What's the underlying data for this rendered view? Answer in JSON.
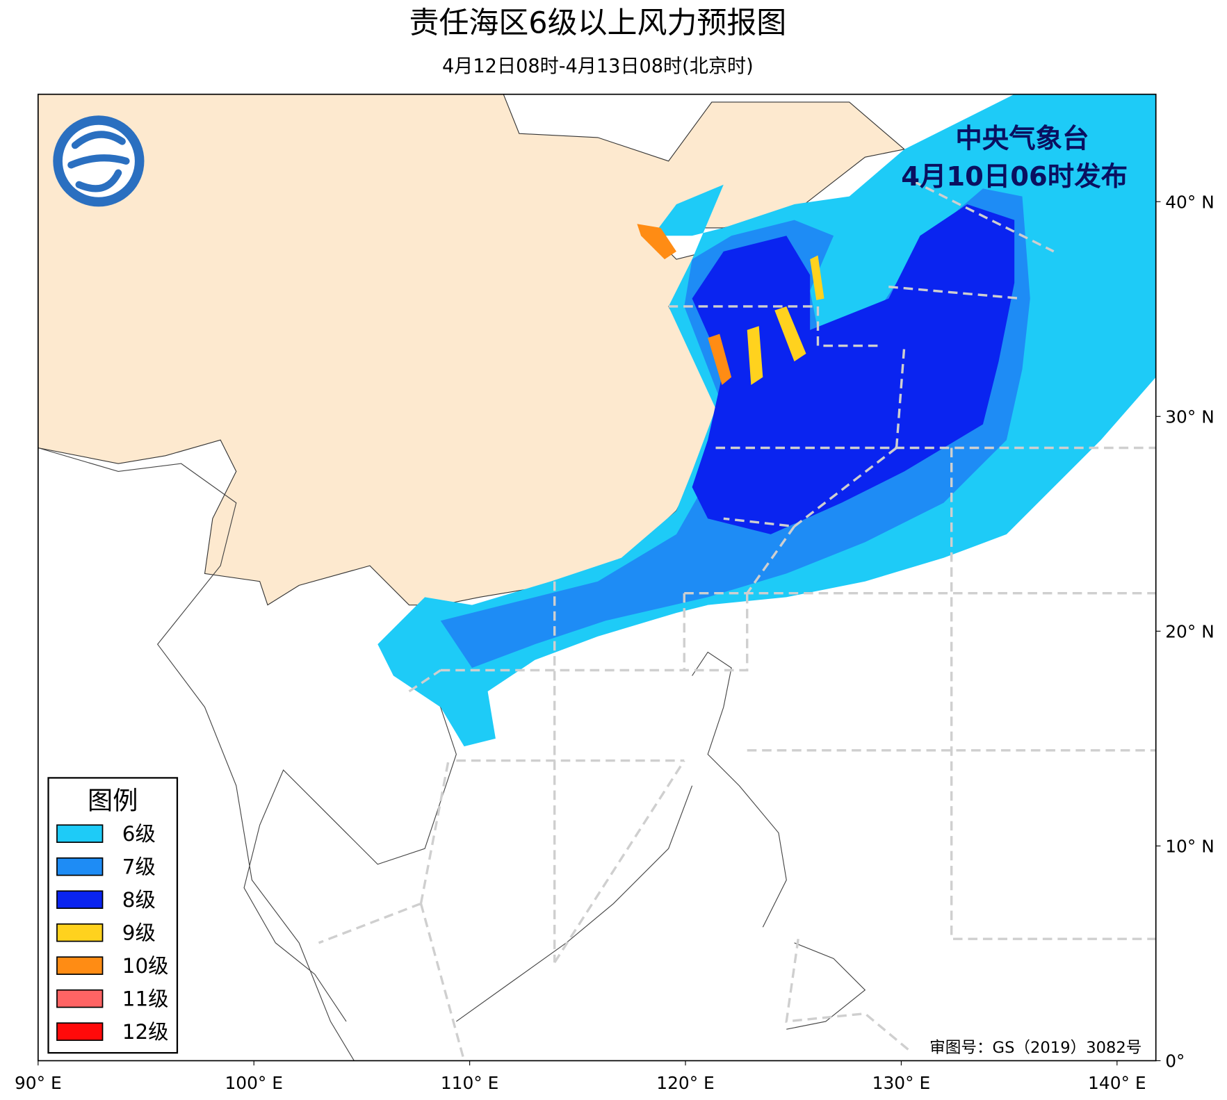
{
  "header": {
    "title": "责任海区6级以上风力预报图",
    "subtitle": "4月12日08时-4月13日08时(北京时)"
  },
  "issuer": {
    "name": "中央气象台",
    "time": "4月10日06时发布"
  },
  "approval": "审图号：GS（2019）3082号",
  "map": {
    "xlim": [
      90,
      141.8
    ],
    "ylim": [
      0,
      45
    ],
    "xticks": [
      {
        "value": 90,
        "label": "90° E"
      },
      {
        "value": 100,
        "label": "100° E"
      },
      {
        "value": 110,
        "label": "110° E"
      },
      {
        "value": 120,
        "label": "120° E"
      },
      {
        "value": 130,
        "label": "130° E"
      },
      {
        "value": 140,
        "label": "140° E"
      }
    ],
    "yticks": [
      {
        "value": 0,
        "label": "0°"
      },
      {
        "value": 10,
        "label": "10° N"
      },
      {
        "value": 20,
        "label": "20° N"
      },
      {
        "value": 30,
        "label": "30° N"
      },
      {
        "value": 40,
        "label": "40° N"
      }
    ]
  },
  "legend": {
    "title": "图例",
    "items": [
      {
        "label": "6级",
        "color": "#1ecbf7"
      },
      {
        "label": "7级",
        "color": "#1e8cf5"
      },
      {
        "label": "8级",
        "color": "#0a24f0"
      },
      {
        "label": "9级",
        "color": "#ffd21e"
      },
      {
        "label": "10级",
        "color": "#ff8c14"
      },
      {
        "label": "11级",
        "color": "#ff6464"
      },
      {
        "label": "12级",
        "color": "#ff0a0a"
      }
    ]
  }
}
